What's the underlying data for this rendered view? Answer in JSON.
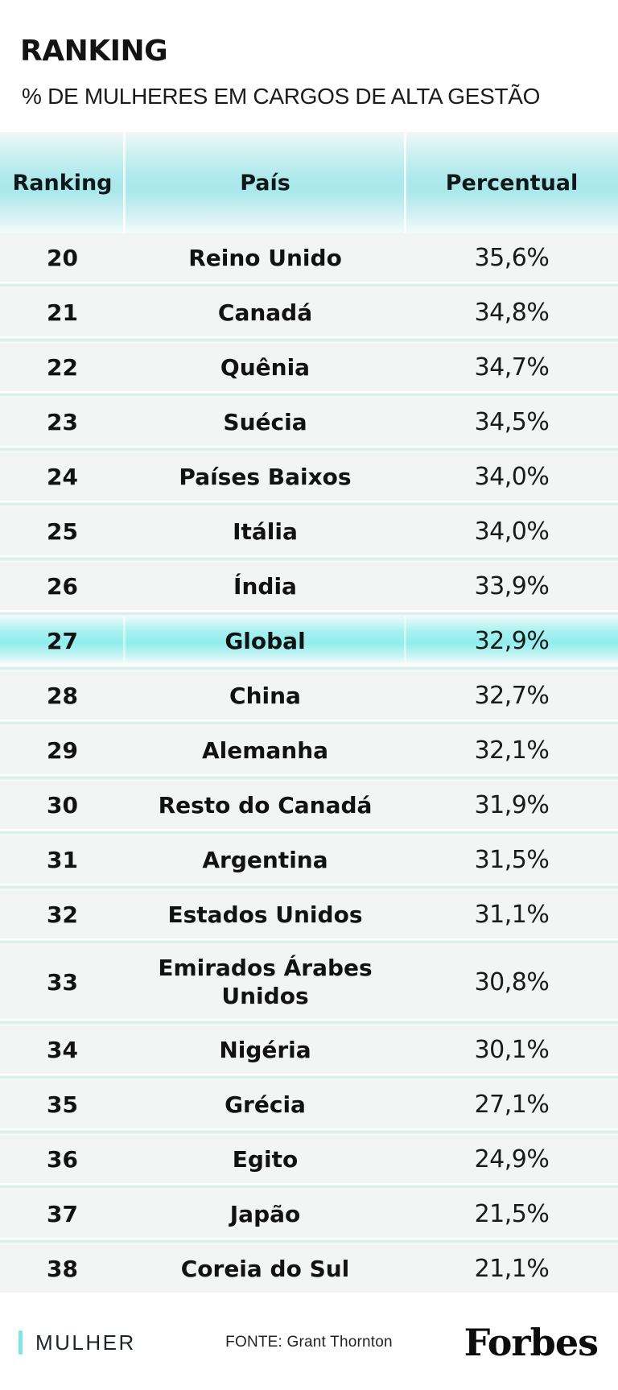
{
  "title": "RANKING",
  "subtitle": "% DE MULHERES EM CARGOS DE ALTA GESTÃO",
  "table": {
    "headers": [
      "Ranking",
      "País",
      "Percentual"
    ],
    "rows": [
      {
        "rank": "20",
        "country": "Reino Unido",
        "percent": "35,6%",
        "highlight": false
      },
      {
        "rank": "21",
        "country": "Canadá",
        "percent": "34,8%",
        "highlight": false
      },
      {
        "rank": "22",
        "country": "Quênia",
        "percent": "34,7%",
        "highlight": false
      },
      {
        "rank": "23",
        "country": "Suécia",
        "percent": "34,5%",
        "highlight": false
      },
      {
        "rank": "24",
        "country": "Países Baixos",
        "percent": "34,0%",
        "highlight": false
      },
      {
        "rank": "25",
        "country": "Itália",
        "percent": "34,0%",
        "highlight": false
      },
      {
        "rank": "26",
        "country": "Índia",
        "percent": "33,9%",
        "highlight": false
      },
      {
        "rank": "27",
        "country": "Global",
        "percent": "32,9%",
        "highlight": true
      },
      {
        "rank": "28",
        "country": "China",
        "percent": "32,7%",
        "highlight": false
      },
      {
        "rank": "29",
        "country": "Alemanha",
        "percent": "32,1%",
        "highlight": false
      },
      {
        "rank": "30",
        "country": "Resto do Canadá",
        "percent": "31,9%",
        "highlight": false
      },
      {
        "rank": "31",
        "country": "Argentina",
        "percent": "31,5%",
        "highlight": false
      },
      {
        "rank": "32",
        "country": "Estados Unidos",
        "percent": "31,1%",
        "highlight": false
      },
      {
        "rank": "33",
        "country": "Emirados Árabes Unidos",
        "percent": "30,8%",
        "highlight": false
      },
      {
        "rank": "34",
        "country": "Nigéria",
        "percent": "30,1%",
        "highlight": false
      },
      {
        "rank": "35",
        "country": "Grécia",
        "percent": "27,1%",
        "highlight": false
      },
      {
        "rank": "36",
        "country": "Egito",
        "percent": "24,9%",
        "highlight": false
      },
      {
        "rank": "37",
        "country": "Japão",
        "percent": "21,5%",
        "highlight": false
      },
      {
        "rank": "38",
        "country": "Coreia do Sul",
        "percent": "21,1%",
        "highlight": false
      }
    ]
  },
  "footer": {
    "section_label": "MULHER",
    "source": "FONTE: Grant Thornton",
    "brand": "Forbes"
  },
  "colors": {
    "header_gradient_cyan": "#AEE9EC",
    "highlight_row_cyan": "#90EEEC",
    "row_background": "#F3F4F4",
    "row_separator": "#D9EFEB",
    "footer_accent_bar": "#7DE5E3",
    "text": "#141414"
  },
  "chart_data": {
    "type": "table",
    "title": "RANKING",
    "subtitle": "% DE MULHERES EM CARGOS DE ALTA GESTÃO",
    "columns": [
      "Ranking",
      "País",
      "Percentual"
    ],
    "rows": [
      [
        20,
        "Reino Unido",
        35.6
      ],
      [
        21,
        "Canadá",
        34.8
      ],
      [
        22,
        "Quênia",
        34.7
      ],
      [
        23,
        "Suécia",
        34.5
      ],
      [
        24,
        "Países Baixos",
        34.0
      ],
      [
        25,
        "Itália",
        34.0
      ],
      [
        26,
        "Índia",
        33.9
      ],
      [
        27,
        "Global",
        32.9
      ],
      [
        28,
        "China",
        32.7
      ],
      [
        29,
        "Alemanha",
        32.1
      ],
      [
        30,
        "Resto do Canadá",
        31.9
      ],
      [
        31,
        "Argentina",
        31.5
      ],
      [
        32,
        "Estados Unidos",
        31.1
      ],
      [
        33,
        "Emirados Árabes Unidos",
        30.8
      ],
      [
        34,
        "Nigéria",
        30.1
      ],
      [
        35,
        "Grécia",
        27.1
      ],
      [
        36,
        "Egito",
        24.9
      ],
      [
        37,
        "Japão",
        21.5
      ],
      [
        38,
        "Coreia do Sul",
        21.1
      ]
    ],
    "highlighted_row_rank": 27,
    "value_unit": "%",
    "source": "Grant Thornton"
  }
}
